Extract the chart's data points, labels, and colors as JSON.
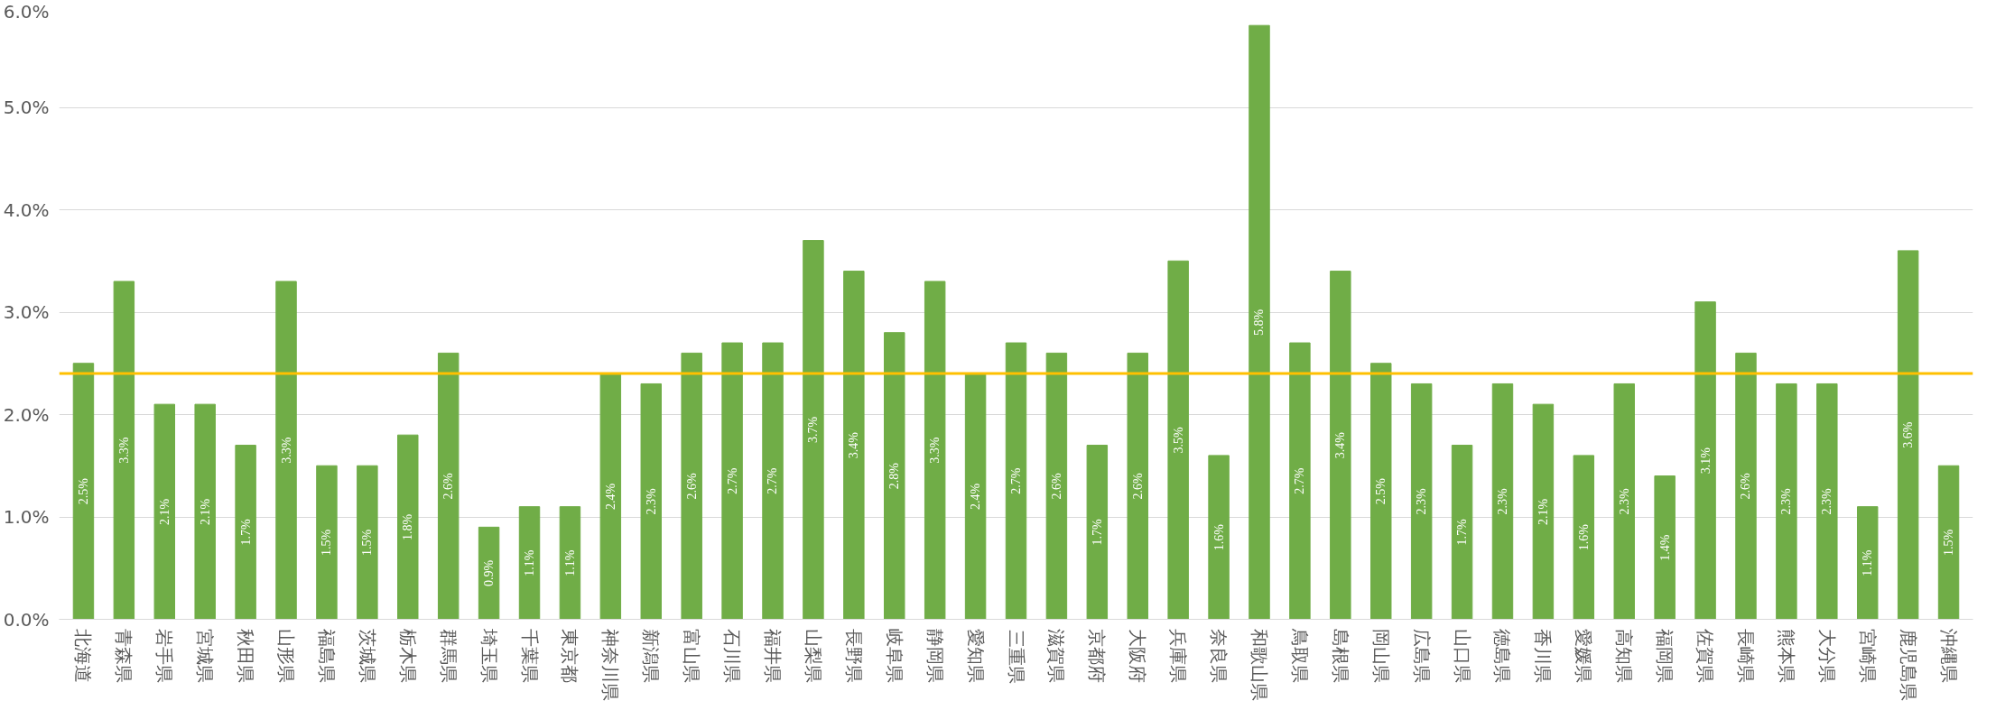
{
  "chart_data": {
    "type": "bar",
    "categories": [
      "北海道",
      "青森県",
      "岩手県",
      "宮城県",
      "秋田県",
      "山形県",
      "福島県",
      "茨城県",
      "栃木県",
      "群馬県",
      "埼玉県",
      "千葉県",
      "東京都",
      "神奈川県",
      "新潟県",
      "富山県",
      "石川県",
      "福井県",
      "山梨県",
      "長野県",
      "岐阜県",
      "静岡県",
      "愛知県",
      "三重県",
      "滋賀県",
      "京都府",
      "大阪府",
      "兵庫県",
      "奈良県",
      "和歌山県",
      "鳥取県",
      "島根県",
      "岡山県",
      "広島県",
      "山口県",
      "徳島県",
      "香川県",
      "愛媛県",
      "高知県",
      "福岡県",
      "佐賀県",
      "長崎県",
      "熊本県",
      "大分県",
      "宮崎県",
      "鹿児島県",
      "沖縄県"
    ],
    "values": [
      2.5,
      3.3,
      2.1,
      2.1,
      1.7,
      3.3,
      1.5,
      1.5,
      1.8,
      2.6,
      0.9,
      1.1,
      1.1,
      2.4,
      2.3,
      2.6,
      2.7,
      2.7,
      3.7,
      3.4,
      2.8,
      3.3,
      2.4,
      2.7,
      2.6,
      1.7,
      2.6,
      3.5,
      1.6,
      5.8,
      2.7,
      3.4,
      2.5,
      2.3,
      1.7,
      2.3,
      2.1,
      1.6,
      2.3,
      1.4,
      3.1,
      2.6,
      2.3,
      2.3,
      1.1,
      3.6,
      1.5
    ],
    "value_labels": [
      "2.5%",
      "3.3%",
      "2.1%",
      "2.1%",
      "1.7%",
      "3.3%",
      "1.5%",
      "1.5%",
      "1.8%",
      "2.6%",
      "0.9%",
      "1.1%",
      "1.1%",
      "2.4%",
      "2.3%",
      "2.6%",
      "2.7%",
      "2.7%",
      "3.7%",
      "3.4%",
      "2.8%",
      "3.3%",
      "2.4%",
      "2.7%",
      "2.6%",
      "1.7%",
      "2.6%",
      "3.5%",
      "1.6%",
      "5.8%",
      "2.7%",
      "3.4%",
      "2.5%",
      "2.3%",
      "1.7%",
      "2.3%",
      "2.1%",
      "1.6%",
      "2.3%",
      "1.4%",
      "3.1%",
      "2.6%",
      "2.3%",
      "2.3%",
      "1.1%",
      "3.6%",
      "1.5%"
    ],
    "color": "#70ad47",
    "ylim": [
      0,
      6
    ],
    "yticks": [
      {
        "value": 0,
        "label": "0.0%"
      },
      {
        "value": 1,
        "label": "1.0%"
      },
      {
        "value": 2,
        "label": "2.0%"
      },
      {
        "value": 3,
        "label": "3.0%"
      },
      {
        "value": 4,
        "label": "4.0%"
      },
      {
        "value": 5,
        "label": "5.0%"
      },
      {
        "value": 6,
        "label": "6.0%"
      }
    ],
    "ref_lines": [
      {
        "axis": "y",
        "value": 2.4,
        "color": "#ffc000"
      }
    ],
    "grid": "y"
  }
}
